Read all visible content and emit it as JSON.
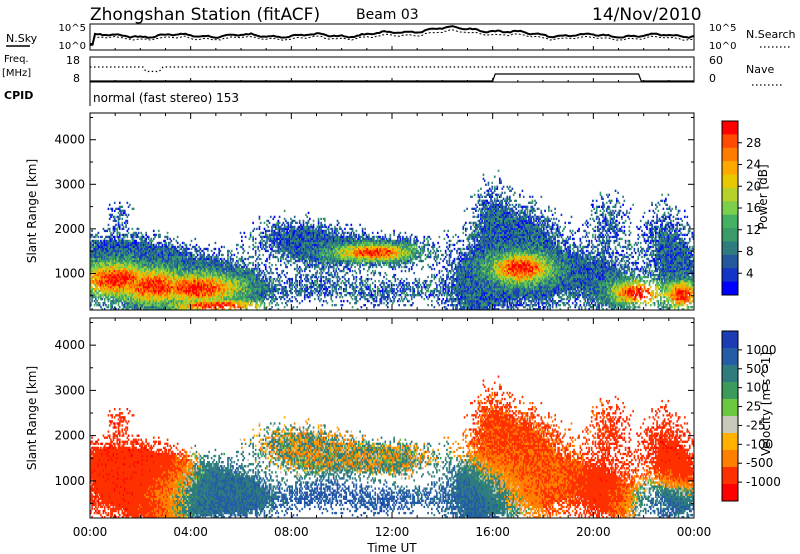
{
  "header": {
    "title": "Zhongshan Station (fitACF)",
    "beam": "Beam 03",
    "date": "14/Nov/2010"
  },
  "noise_panel": {
    "left_label": "N.Sky",
    "right_label": "N.Search",
    "left_ticks": [
      "10^5",
      "10^0"
    ],
    "right_ticks": [
      "10^5",
      "10^0"
    ]
  },
  "freq_panel": {
    "left_label_1": "Freq.",
    "left_label_2": "[MHz]",
    "left_ticks": [
      "18",
      "8"
    ],
    "right_ticks": [
      "60",
      "0"
    ],
    "right_label": "Nave",
    "cpid_label": "CPID",
    "cpid_text": "normal (fast stereo) 153"
  },
  "time_axis": {
    "ticks": [
      "00:00",
      "04:00",
      "08:00",
      "12:00",
      "16:00",
      "20:00",
      "00:00"
    ],
    "label": "Time UT"
  },
  "range_axis": {
    "label": "Slant Range [km]",
    "ticks": [
      "1000",
      "2000",
      "3000",
      "4000"
    ]
  },
  "chart_data": [
    {
      "type": "heatmap",
      "panel": "power",
      "xlabel": "Time UT",
      "ylabel": "Slant Range [km]",
      "ylim": [
        180,
        4600
      ],
      "colorbar": {
        "label": "Power [dB]",
        "ticks": [
          "28",
          "24",
          "20",
          "16",
          "12",
          "8",
          "4"
        ],
        "colors": [
          "#ff0000",
          "#ff4a00",
          "#ff7c00",
          "#ffa800",
          "#e8c800",
          "#b6d22a",
          "#7ccf4c",
          "#43b062",
          "#3a9a6a",
          "#2f7c7e",
          "#23589c",
          "#1434c8",
          "#0000ff"
        ]
      }
    },
    {
      "type": "heatmap",
      "panel": "velocity",
      "xlabel": "Time UT",
      "ylabel": "Slant Range [km]",
      "ylim": [
        180,
        4600
      ],
      "colorbar": {
        "label": "Velocity [m s^-1]",
        "ticks": [
          "1000",
          "500",
          "100",
          "25",
          "-25",
          "-100",
          "-500",
          "-1000"
        ],
        "colors": [
          "#1c3cb4",
          "#245ca6",
          "#2f7c7e",
          "#3c9a5c",
          "#6cc840",
          "#c8c8bc",
          "#ffb000",
          "#ff8000",
          "#ff3000",
          "#ff0000"
        ]
      }
    }
  ]
}
